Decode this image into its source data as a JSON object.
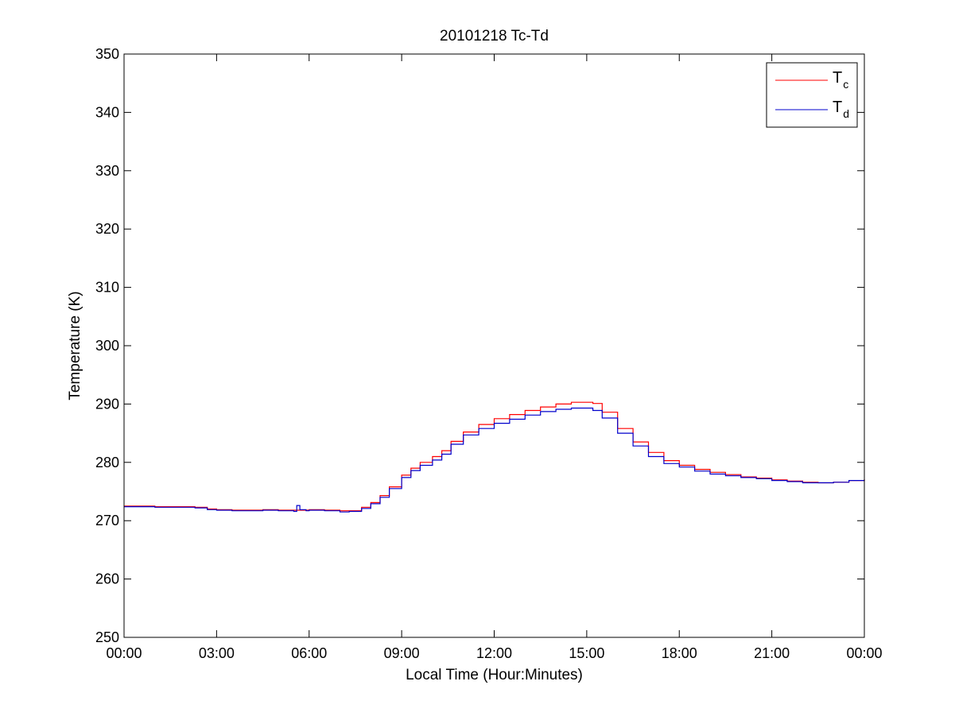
{
  "chart_data": {
    "type": "line",
    "title": "20101218 Tc-Td",
    "xlabel": "Local Time (Hour:Minutes)",
    "ylabel": "Temperature (K)",
    "xlim": [
      0,
      24
    ],
    "ylim": [
      250,
      350
    ],
    "x_ticks": [
      0,
      3,
      6,
      9,
      12,
      15,
      18,
      21,
      24
    ],
    "x_tick_labels": [
      "00:00",
      "03:00",
      "06:00",
      "09:00",
      "12:00",
      "15:00",
      "18:00",
      "21:00",
      "00:00"
    ],
    "y_ticks": [
      250,
      260,
      270,
      280,
      290,
      300,
      310,
      320,
      330,
      340,
      350
    ],
    "y_tick_labels": [
      "250",
      "260",
      "270",
      "280",
      "290",
      "300",
      "310",
      "320",
      "330",
      "340",
      "350"
    ],
    "grid": false,
    "legend_position": "top-right",
    "series": [
      {
        "name": "Tc",
        "legend_main": "T",
        "legend_sub": "c",
        "color": "#ff0000",
        "x": [
          0,
          0.5,
          1,
          1.5,
          2,
          2.3,
          2.7,
          3,
          3.5,
          4,
          4.5,
          5,
          5.5,
          5.9,
          6,
          6.5,
          7,
          7.3,
          7.7,
          8,
          8.3,
          8.6,
          9,
          9.3,
          9.6,
          10,
          10.3,
          10.6,
          11,
          11.5,
          12,
          12.5,
          13,
          13.5,
          14,
          14.5,
          15,
          15.2,
          15.5,
          16,
          16.5,
          17,
          17.5,
          18,
          18.5,
          19,
          19.5,
          20,
          20.5,
          21,
          21.5,
          22,
          22.5,
          23,
          23.5,
          24
        ],
        "y": [
          272.5,
          272.5,
          272.4,
          272.4,
          272.4,
          272.3,
          272.0,
          271.9,
          271.8,
          271.8,
          271.9,
          271.8,
          271.8,
          271.8,
          271.9,
          271.8,
          271.7,
          271.7,
          272.3,
          273.1,
          274.3,
          275.8,
          277.8,
          279.0,
          280.0,
          281.0,
          282.0,
          283.6,
          285.2,
          286.5,
          287.5,
          288.2,
          288.9,
          289.5,
          290.0,
          290.3,
          290.3,
          290.1,
          288.6,
          285.8,
          283.5,
          281.7,
          280.3,
          279.5,
          278.8,
          278.3,
          277.9,
          277.5,
          277.3,
          277.0,
          276.8,
          276.6,
          276.5,
          276.6,
          276.9,
          277.1
        ]
      },
      {
        "name": "Td",
        "legend_main": "T",
        "legend_sub": "d",
        "color": "#0000cc",
        "x": [
          0,
          0.5,
          1,
          1.5,
          2,
          2.3,
          2.7,
          3,
          3.5,
          4,
          4.5,
          5,
          5.5,
          5.6,
          5.7,
          5.9,
          6,
          6.5,
          7,
          7.3,
          7.7,
          8,
          8.3,
          8.6,
          9,
          9.3,
          9.6,
          10,
          10.3,
          10.6,
          11,
          11.5,
          12,
          12.5,
          13,
          13.5,
          14,
          14.5,
          15,
          15.2,
          15.5,
          16,
          16.5,
          17,
          17.5,
          18,
          18.5,
          19,
          19.5,
          20,
          20.5,
          21,
          21.5,
          22,
          22.5,
          23,
          23.5,
          24
        ],
        "y": [
          272.4,
          272.4,
          272.3,
          272.3,
          272.3,
          272.2,
          271.9,
          271.8,
          271.7,
          271.7,
          271.8,
          271.7,
          271.6,
          272.6,
          271.9,
          271.7,
          271.8,
          271.7,
          271.5,
          271.6,
          272.1,
          272.9,
          274.0,
          275.5,
          277.4,
          278.6,
          279.5,
          280.4,
          281.4,
          283.1,
          284.7,
          285.8,
          286.7,
          287.4,
          288.1,
          288.7,
          289.1,
          289.3,
          289.3,
          288.9,
          287.6,
          285.0,
          282.8,
          281.0,
          279.8,
          279.2,
          278.5,
          278.0,
          277.7,
          277.4,
          277.2,
          276.9,
          276.7,
          276.5,
          276.5,
          276.6,
          276.9,
          277.0
        ]
      }
    ]
  }
}
